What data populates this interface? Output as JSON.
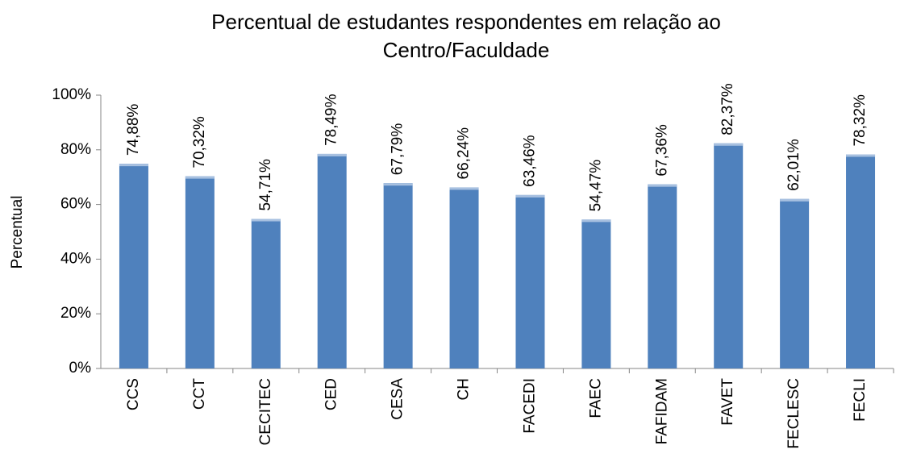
{
  "chart_data": {
    "type": "bar",
    "title": "Percentual de estudantes respondentes em relação ao Centro/Faculdade",
    "y_label": "Percentual",
    "categories": [
      "CCS",
      "CCT",
      "CECITEC",
      "CED",
      "CESA",
      "CH",
      "FACEDI",
      "FAEC",
      "FAFIDAM",
      "FAVET",
      "FECLESC",
      "FECLI"
    ],
    "values": [
      74.88,
      70.32,
      54.71,
      78.49,
      67.79,
      66.24,
      63.46,
      54.47,
      67.36,
      82.37,
      62.01,
      78.32
    ],
    "value_labels": [
      "74,88%",
      "70,32%",
      "54,71%",
      "78,49%",
      "67,79%",
      "66,24%",
      "63,46%",
      "54,47%",
      "67,36%",
      "82,37%",
      "62,01%",
      "78,32%"
    ],
    "color": "#4f81bd",
    "ylim": [
      0,
      100
    ],
    "yticks": [
      {
        "value": 0,
        "label": "0%"
      },
      {
        "value": 20,
        "label": "20%"
      },
      {
        "value": 40,
        "label": "40%"
      },
      {
        "value": 60,
        "label": "60%"
      },
      {
        "value": 80,
        "label": "80%"
      },
      {
        "value": 100,
        "label": "100%"
      }
    ],
    "grid": false
  }
}
